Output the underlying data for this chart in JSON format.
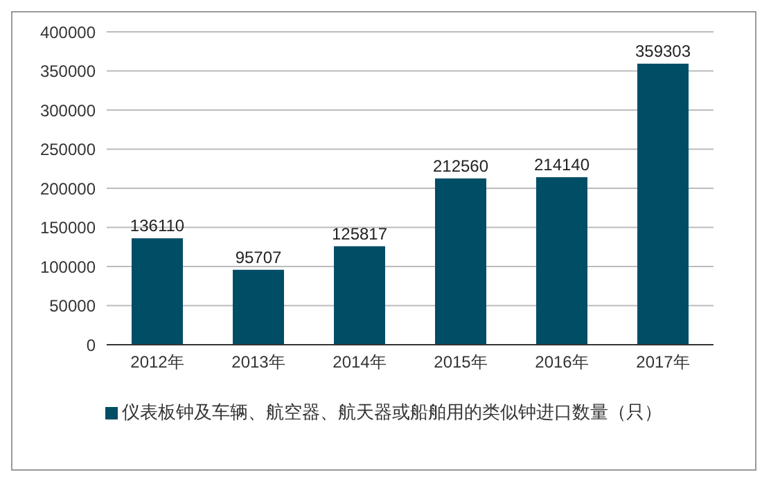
{
  "chart_data": {
    "type": "bar",
    "categories": [
      "2012年",
      "2013年",
      "2014年",
      "2015年",
      "2016年",
      "2017年"
    ],
    "series": [
      {
        "name": "仪表板钟及车辆、航空器、航天器或船舶用的类似钟进口数量（只）",
        "color": "#004d66",
        "values": [
          136110,
          95707,
          125817,
          212560,
          214140,
          359303
        ]
      }
    ],
    "ylim": [
      0,
      400000
    ],
    "yticks": [
      0,
      50000,
      100000,
      150000,
      200000,
      250000,
      300000,
      350000,
      400000
    ],
    "grid": "y",
    "legend": "bottom",
    "data_labels": true
  }
}
